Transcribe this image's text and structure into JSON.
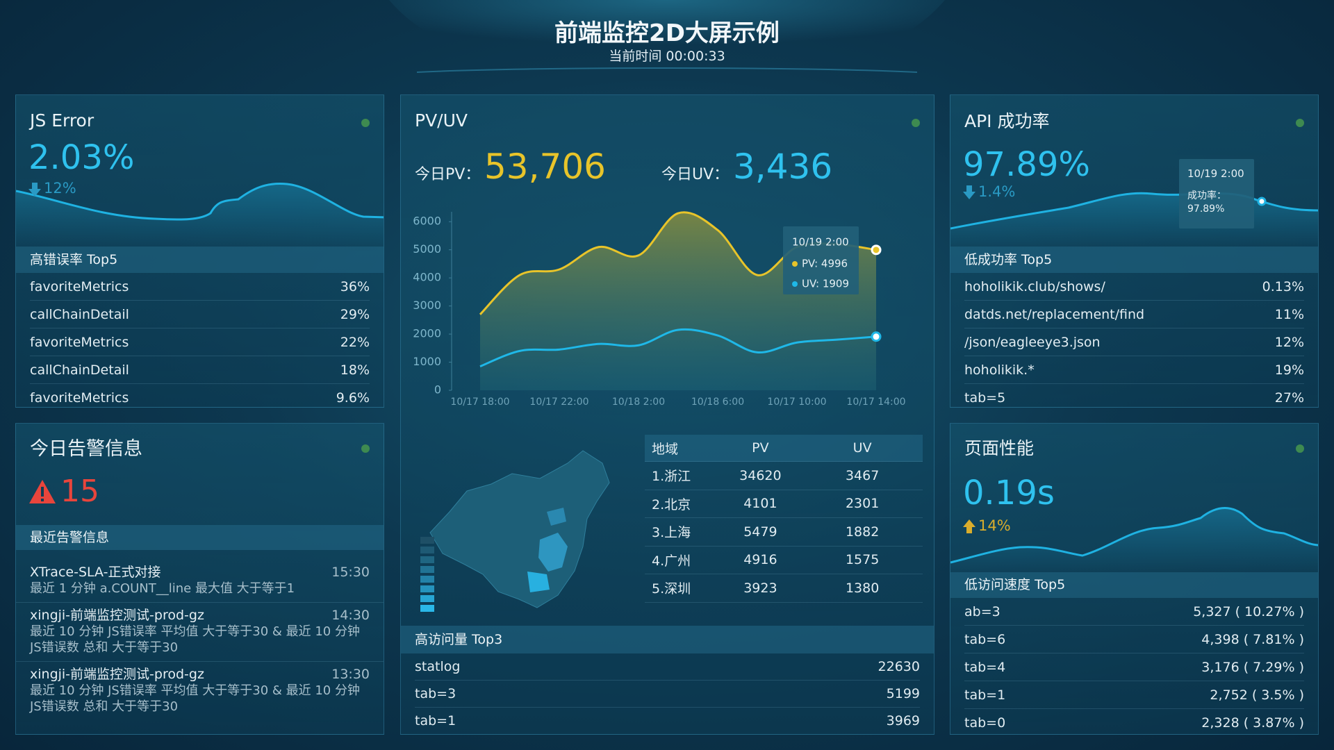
{
  "header": {
    "title": "前端监控2D大屏示例",
    "time": "当前时间 00:00:33"
  },
  "js_error": {
    "title": "JS Error",
    "value": "2.03%",
    "change": "12%",
    "list_title": "高错误率 Top5",
    "rows": [
      {
        "name": "favoriteMetrics",
        "value": "36%"
      },
      {
        "name": "callChainDetail",
        "value": "29%"
      },
      {
        "name": "favoriteMetrics",
        "value": "22%"
      },
      {
        "name": "callChainDetail",
        "value": "18%"
      },
      {
        "name": "favoriteMetrics",
        "value": "9.6%"
      }
    ]
  },
  "alerts": {
    "title": "今日告警信息",
    "count": "15",
    "list_title": "最近告警信息",
    "items": [
      {
        "name": "XTrace-SLA-正式对接",
        "time": "15:30",
        "desc": "最近 1 分钟 a.COUNT__line 最大值 大于等于1"
      },
      {
        "name": "xingji-前端监控测试-prod-gz",
        "time": "14:30",
        "desc": "最近 10 分钟 JS错误率 平均值 大于等于30 & 最近 10 分钟 JS错误数 总和 大于等于30"
      },
      {
        "name": "xingji-前端监控测试-prod-gz",
        "time": "13:30",
        "desc": "最近 10 分钟 JS错误率 平均值 大于等于30 & 最近 10 分钟 JS错误数 总和 大于等于30"
      }
    ]
  },
  "pv_uv": {
    "title": "PV/UV",
    "pv_label": "今日PV：",
    "pv": "53,706",
    "uv_label": "今日UV：",
    "uv": "3,436",
    "region": {
      "columns": [
        "地域",
        "PV",
        "UV"
      ],
      "rows": [
        [
          "1.浙江",
          "34620",
          "3467"
        ],
        [
          "2.北京",
          "4101",
          "2301"
        ],
        [
          "3.上海",
          "5479",
          "1882"
        ],
        [
          "4.广州",
          "4916",
          "1575"
        ],
        [
          "5.深圳",
          "3923",
          "1380"
        ]
      ]
    },
    "top_title": "高访问量 Top3",
    "top": [
      {
        "name": "statlog",
        "value": "22630"
      },
      {
        "name": "tab=3",
        "value": "5199"
      },
      {
        "name": "tab=1",
        "value": "3969"
      }
    ]
  },
  "chart_data": {
    "type": "line",
    "categories": [
      "10/17 18:00",
      null,
      "10/17 22:00",
      null,
      "10/18 2:00",
      null,
      "10/18 6:00",
      null,
      "10/17 10:00",
      null,
      "10/17 14:00"
    ],
    "series": [
      {
        "color": "#e8c42a",
        "values": [
          2700,
          4100,
          4300,
          5100,
          4800,
          6300,
          5700,
          4100,
          5100,
          5200,
          4996
        ]
      },
      {
        "color": "#1fb8e8",
        "values": [
          850,
          1400,
          1450,
          1650,
          1600,
          2150,
          1950,
          1350,
          1700,
          1800,
          1909
        ]
      }
    ],
    "ylim": [
      0,
      6500
    ],
    "yticks": [
      0,
      1000,
      2000,
      3000,
      4000,
      5000,
      6000
    ],
    "tooltip": {
      "title": "10/19 2:00",
      "items": [
        "PV: 4996",
        "UV: 1909"
      ]
    }
  },
  "api": {
    "title": "API 成功率",
    "value": "97.89%",
    "change": "1.4%",
    "tooltip": {
      "title": "10/19 2:00",
      "label": "成功率：",
      "value": "97.89%"
    },
    "list_title": "低成功率 Top5",
    "rows": [
      {
        "name": "hoholikik.club/shows/",
        "value": "0.13%"
      },
      {
        "name": "datds.net/replacement/find",
        "value": "11%"
      },
      {
        "name": "/json/eagleeye3.json",
        "value": "12%"
      },
      {
        "name": "hoholikik.*",
        "value": "19%"
      },
      {
        "name": "tab=5",
        "value": "27%"
      }
    ]
  },
  "perf": {
    "title": "页面性能",
    "value": "0.19s",
    "change": "14%",
    "list_title": "低访问速度 Top5",
    "rows": [
      {
        "name": "ab=3",
        "value": "5,327 ( 10.27% )"
      },
      {
        "name": "tab=6",
        "value": "4,398 ( 7.81% )"
      },
      {
        "name": "tab=4",
        "value": "3,176 ( 7.29% )"
      },
      {
        "name": "tab=1",
        "value": "2,752 ( 3.5% )"
      },
      {
        "name": "tab=0",
        "value": "2,328 ( 3.87% )"
      }
    ]
  }
}
